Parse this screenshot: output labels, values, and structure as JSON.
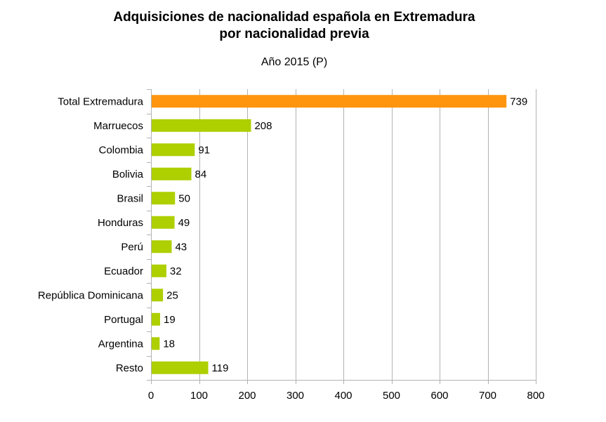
{
  "chart_data": {
    "type": "bar",
    "orientation": "horizontal",
    "title_line1": "Adquisiciones de nacionalidad española en Extremadura",
    "title_line2": "por nacionalidad previa",
    "subtitle": "Año 2015 (P)",
    "categories": [
      "Total Extremadura",
      "Marruecos",
      "Colombia",
      "Bolivia",
      "Brasil",
      "Honduras",
      "Perú",
      "Ecuador",
      "República Dominicana",
      "Portugal",
      "Argentina",
      "Resto"
    ],
    "values": [
      739,
      208,
      91,
      84,
      50,
      49,
      43,
      32,
      25,
      19,
      18,
      119
    ],
    "xlim": [
      0,
      800
    ],
    "xticks": [
      0,
      100,
      200,
      300,
      400,
      500,
      600,
      700,
      800
    ],
    "xlabel": "",
    "ylabel": "",
    "grid": true,
    "colors": {
      "highlight": "#ff950e",
      "bar": "#aecf00"
    },
    "highlight_index": 0
  }
}
